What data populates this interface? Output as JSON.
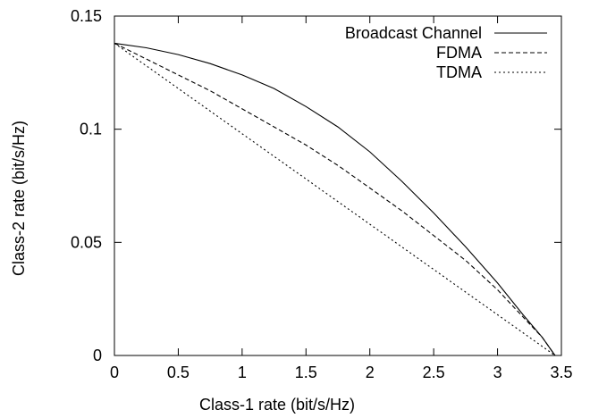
{
  "chart_data": {
    "type": "line",
    "xlabel": "Class-1 rate (bit/s/Hz)",
    "ylabel": "Class-2 rate (bit/s/Hz)",
    "xlim": [
      0,
      3.5
    ],
    "ylim": [
      0,
      0.15
    ],
    "xticks": [
      "0",
      "0.5",
      "1",
      "1.5",
      "2",
      "2.5",
      "3",
      "3.5"
    ],
    "yticks": [
      "0",
      "0.05",
      "0.1",
      "0.15"
    ],
    "grid": false,
    "legend_position": "top-right",
    "series": [
      {
        "name": "Broadcast Channel",
        "style": "solid",
        "x": [
          0,
          0.25,
          0.5,
          0.75,
          1.0,
          1.25,
          1.5,
          1.75,
          2.0,
          2.25,
          2.5,
          2.75,
          3.0,
          3.2,
          3.35,
          3.45
        ],
        "y": [
          0.138,
          0.136,
          0.133,
          0.129,
          0.124,
          0.118,
          0.11,
          0.101,
          0.09,
          0.077,
          0.063,
          0.048,
          0.032,
          0.018,
          0.008,
          0.0
        ]
      },
      {
        "name": "FDMA",
        "style": "dashed",
        "x": [
          0,
          0.25,
          0.5,
          0.75,
          1.0,
          1.25,
          1.5,
          1.75,
          2.0,
          2.25,
          2.5,
          2.75,
          3.0,
          3.2,
          3.35,
          3.45
        ],
        "y": [
          0.138,
          0.131,
          0.124,
          0.117,
          0.109,
          0.101,
          0.093,
          0.084,
          0.074,
          0.064,
          0.053,
          0.042,
          0.029,
          0.017,
          0.008,
          0.0
        ]
      },
      {
        "name": "TDMA",
        "style": "dotted",
        "x": [
          0,
          3.45
        ],
        "y": [
          0.138,
          0.0
        ]
      }
    ]
  }
}
